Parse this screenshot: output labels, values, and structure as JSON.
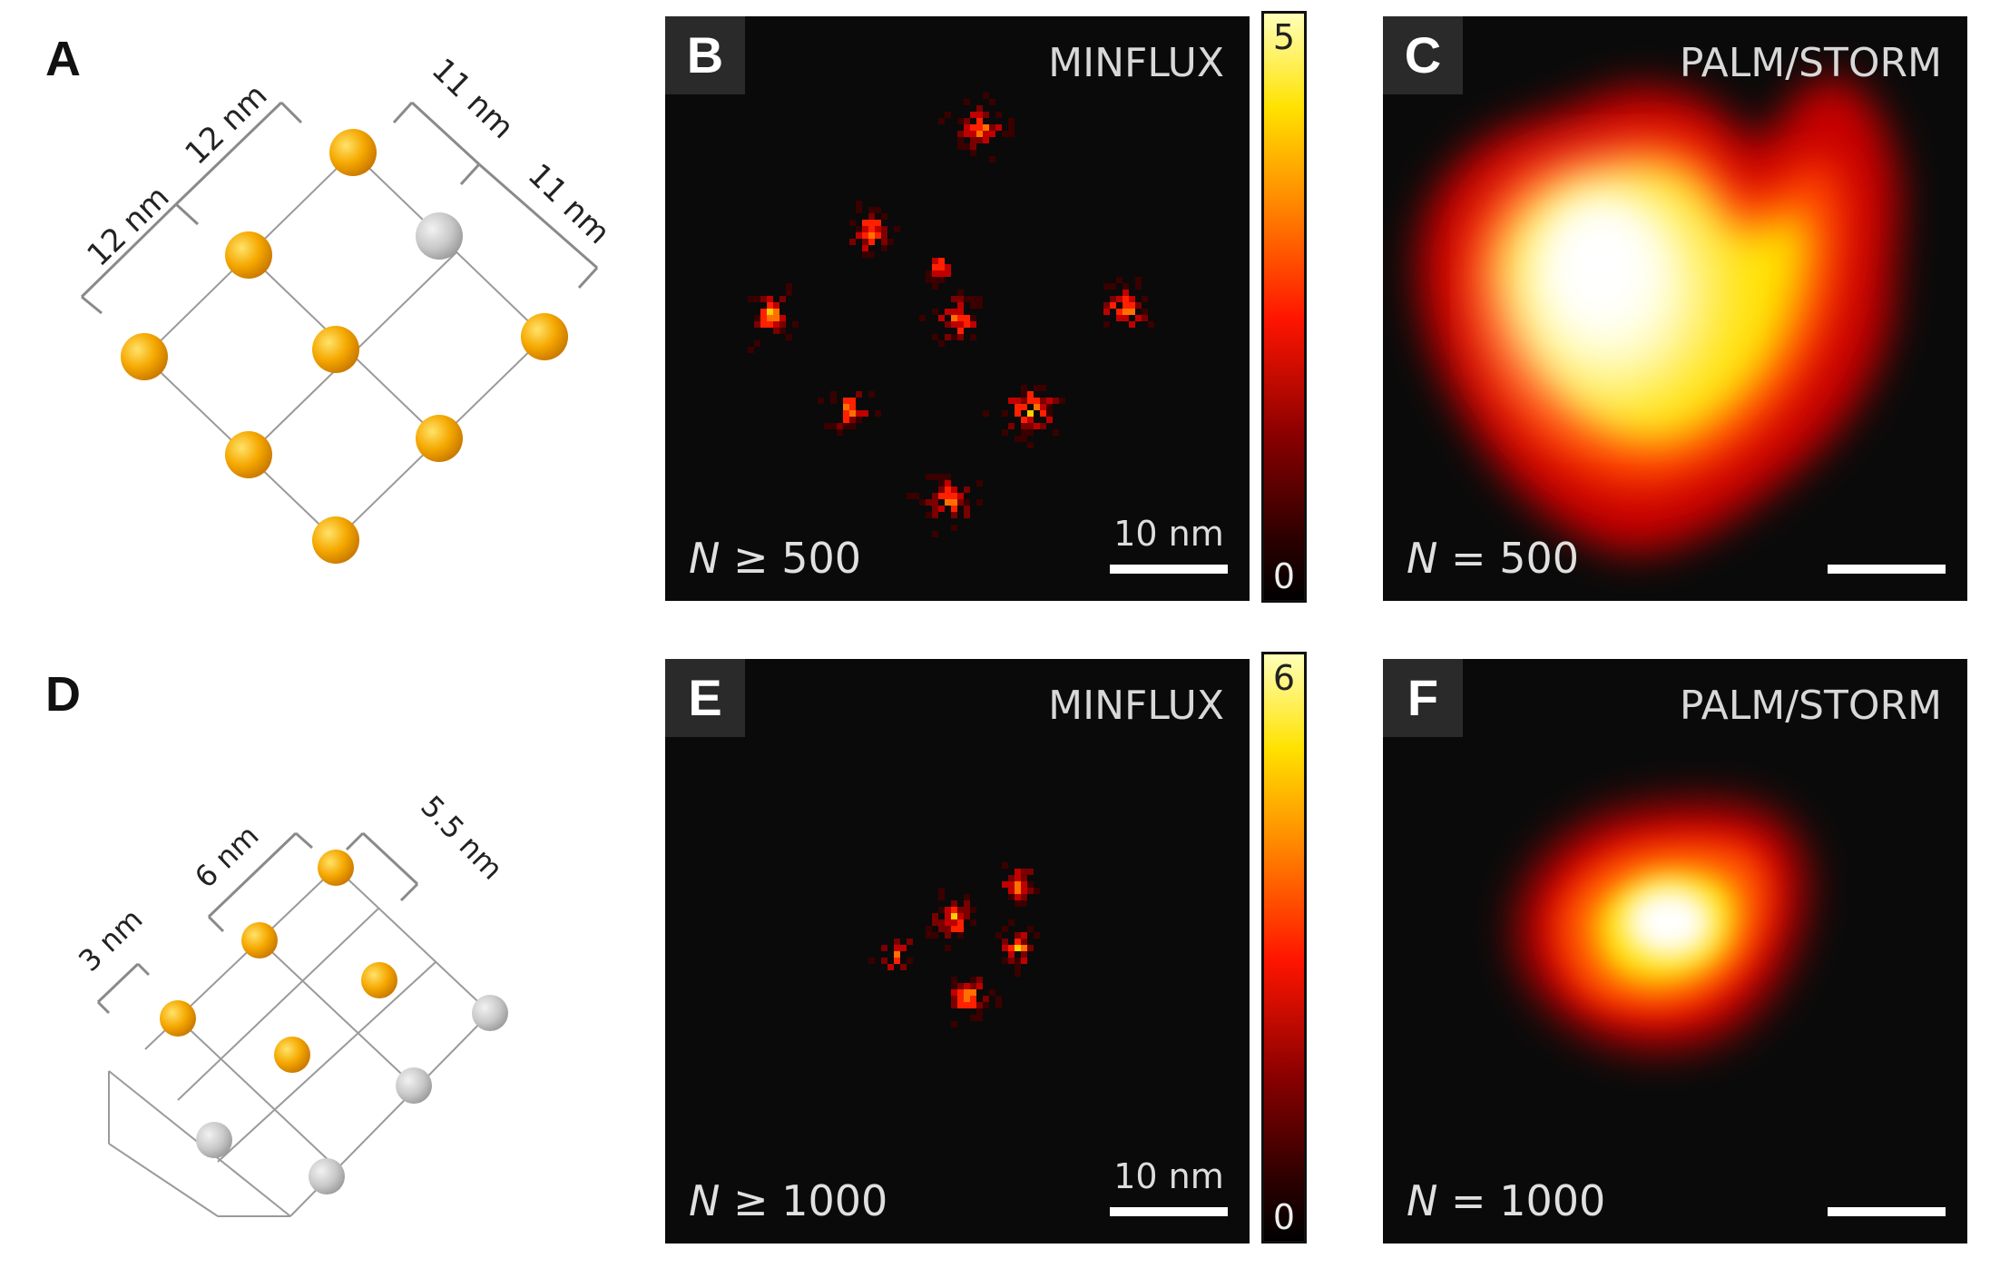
{
  "figure": {
    "panels": [
      {
        "letter": "A",
        "annotations": [
          "12 nm",
          "12 nm",
          "11 nm",
          "11 nm"
        ]
      },
      {
        "letter": "B",
        "method": "MINFLUX",
        "n_label": "≥ 500",
        "scale": "10 nm",
        "colorbar": {
          "max": "5",
          "min": "0"
        }
      },
      {
        "letter": "C",
        "method": "PALM/STORM",
        "n_label": "= 500"
      },
      {
        "letter": "D",
        "annotations": [
          "6 nm",
          "5.5 nm",
          "3 nm"
        ]
      },
      {
        "letter": "E",
        "method": "MINFLUX",
        "n_label": "≥ 1000",
        "scale": "10 nm",
        "colorbar": {
          "max": "6",
          "min": "0"
        }
      },
      {
        "letter": "F",
        "method": "PALM/STORM",
        "n_label": "= 1000"
      }
    ],
    "n_symbol": "N",
    "colors": {
      "active_dot": "#f5a800",
      "inactive_dot": "#c8c8c8",
      "panel_bg": "#0a0a0a"
    },
    "colormap": [
      "#000000",
      "#3a0000",
      "#b00000",
      "#ff2000",
      "#ff8000",
      "#ffe000",
      "#ffffa0"
    ]
  }
}
